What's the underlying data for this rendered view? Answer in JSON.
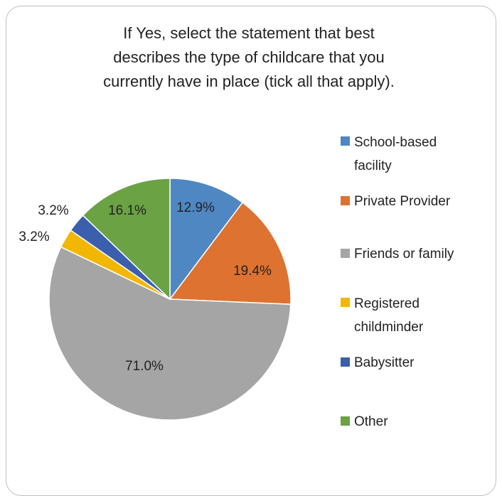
{
  "chart_data": {
    "type": "pie",
    "title": "If Yes, select the statement that best\ndescribes the type of childcare that you\ncurrently have in place (tick all that apply).",
    "categories": [
      "School-based facility",
      "Private Provider",
      "Friends or family",
      "Registered childminder",
      "Babysitter",
      "Other"
    ],
    "legend_labels": [
      "School-based\nfacility",
      "Private Provider",
      "Friends or family",
      "Registered\nchildminder",
      "Babysitter",
      "Other"
    ],
    "values": [
      12.9,
      19.4,
      71.0,
      3.2,
      3.2,
      16.1
    ],
    "data_labels": [
      "12.9%",
      "19.4%",
      "71.0%",
      "3.2%",
      "3.2%",
      "16.1%"
    ],
    "colors": [
      "#4f87c2",
      "#dd7231",
      "#a5a5a5",
      "#f2b705",
      "#3b5fad",
      "#6aa244"
    ],
    "legend_position": "right",
    "start_angle": "top, clockwise"
  }
}
